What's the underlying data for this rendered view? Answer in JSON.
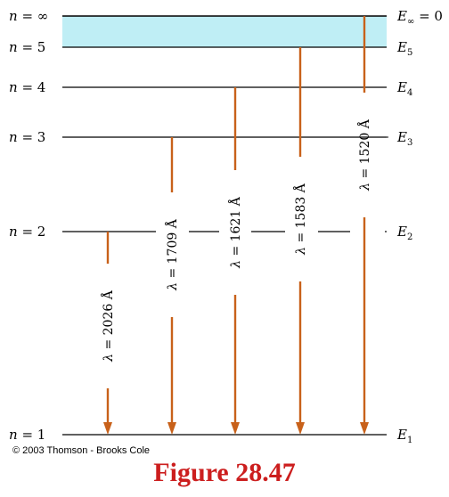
{
  "levels": [
    {
      "n_label": "n = ∞",
      "n_sym": "n",
      "n_val": "∞",
      "e_main": "E",
      "e_sub": "∞",
      "e_suffix": " = 0"
    },
    {
      "n_label": "n = 5",
      "n_sym": "n",
      "n_val": "5",
      "e_main": "E",
      "e_sub": "5",
      "e_suffix": ""
    },
    {
      "n_label": "n = 4",
      "n_sym": "n",
      "n_val": "4",
      "e_main": "E",
      "e_sub": "4",
      "e_suffix": ""
    },
    {
      "n_label": "n = 3",
      "n_sym": "n",
      "n_val": "3",
      "e_main": "E",
      "e_sub": "3",
      "e_suffix": ""
    },
    {
      "n_label": "n = 2",
      "n_sym": "n",
      "n_val": "2",
      "e_main": "E",
      "e_sub": "2",
      "e_suffix": ""
    },
    {
      "n_label": "n = 1",
      "n_sym": "n",
      "n_val": "1",
      "e_main": "E",
      "e_sub": "1",
      "e_suffix": ""
    }
  ],
  "transitions": [
    {
      "from": "n = 2",
      "to": "n = 1",
      "label": "λ = 2026 Å",
      "sym": "λ",
      "rest": " = 2026 Å"
    },
    {
      "from": "n = 3",
      "to": "n = 1",
      "label": "λ = 1709 Å",
      "sym": "λ",
      "rest": " = 1709 Å"
    },
    {
      "from": "n = 4",
      "to": "n = 1",
      "label": "λ = 1621 Å",
      "sym": "λ",
      "rest": " = 1621 Å"
    },
    {
      "from": "n = 5",
      "to": "n = 1",
      "label": "λ = 1583 Å",
      "sym": "λ",
      "rest": " = 1583 Å"
    },
    {
      "from": "n = ∞",
      "to": "n = 1",
      "label": "λ = 1520 Å",
      "sym": "λ",
      "rest": " = 1520 Å"
    }
  ],
  "copyright": "© 2003 Thomson - Brooks Cole",
  "caption": "Figure 28.47",
  "colors": {
    "arrow": "#c8611a",
    "band": "#bfeef5",
    "caption": "#cc1e1e"
  }
}
